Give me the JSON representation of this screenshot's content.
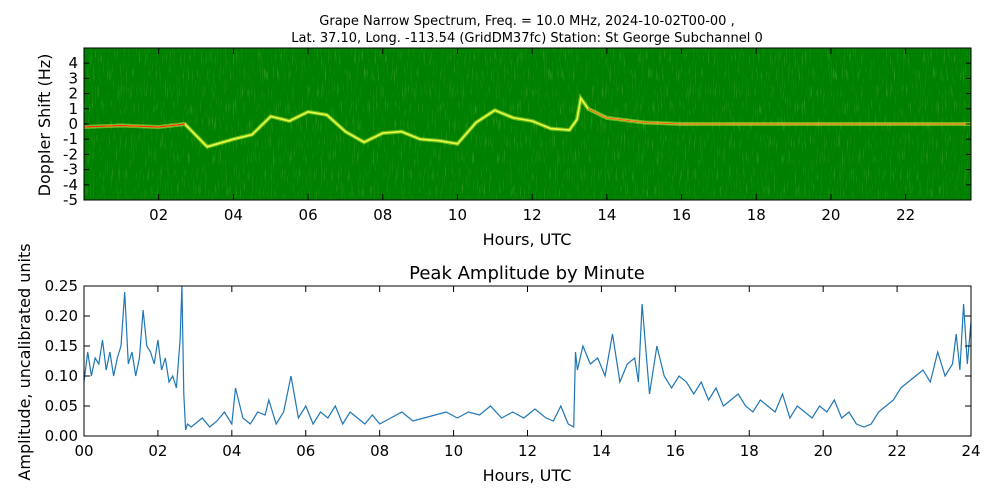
{
  "chart_data": [
    {
      "type": "heatmap",
      "title_lines": [
        "Grape Narrow Spectrum, Freq. = 10.0 MHz, 2024-10-02T00-00 ,",
        "Lat.  37.10, Long. -113.54 (GridDM37fc) Station: St George Subchannel 0"
      ],
      "xlabel": "Hours, UTC",
      "ylabel": "Doppler Shift (Hz)",
      "xlim": [
        0,
        24
      ],
      "ylim": [
        -5,
        5
      ],
      "xticks": [
        "02",
        "04",
        "06",
        "08",
        "10",
        "12",
        "14",
        "16",
        "18",
        "20",
        "22"
      ],
      "yticks": [
        "4",
        "3",
        "2",
        "1",
        "0",
        "-1",
        "-2",
        "-3",
        "-4",
        "-5"
      ],
      "colors": {
        "background": "#008000",
        "trace": "#e8ff40",
        "peak": "#ff2a10"
      },
      "doppler_trace": {
        "x": [
          0,
          1,
          2,
          2.7,
          3.3,
          4,
          4.5,
          5,
          5.5,
          6,
          6.5,
          7,
          7.5,
          8,
          8.5,
          9,
          9.5,
          10,
          10.5,
          11,
          11.5,
          12,
          12.5,
          13,
          13.2,
          13.3,
          13.5,
          14,
          15,
          16,
          17,
          18,
          19,
          20,
          21,
          22,
          23,
          24
        ],
        "y": [
          -0.2,
          -0.1,
          -0.2,
          0,
          -1.5,
          -1,
          -0.7,
          0.5,
          0.2,
          0.8,
          0.6,
          -0.5,
          -1.2,
          -0.6,
          -0.5,
          -1,
          -1.1,
          -1.3,
          0.1,
          0.9,
          0.4,
          0.2,
          -0.3,
          -0.4,
          0.3,
          1.7,
          1,
          0.4,
          0.1,
          0,
          0,
          0,
          0,
          0,
          0,
          0,
          0,
          0
        ]
      }
    },
    {
      "type": "line",
      "title": "Peak Amplitude by Minute",
      "xlabel": "Hours, UTC",
      "ylabel": "Amplitude, uncalibrated units",
      "xlim": [
        0,
        24
      ],
      "ylim": [
        0,
        0.25
      ],
      "xticks": [
        "00",
        "02",
        "04",
        "06",
        "08",
        "10",
        "12",
        "14",
        "16",
        "18",
        "20",
        "22",
        "24"
      ],
      "yticks": [
        "0.00",
        "0.05",
        "0.10",
        "0.15",
        "0.20",
        "0.25"
      ],
      "line_color": "#1f77b4",
      "series": [
        {
          "x": [
            0,
            0.1,
            0.2,
            0.3,
            0.4,
            0.5,
            0.6,
            0.7,
            0.8,
            0.9,
            1.0,
            1.1,
            1.2,
            1.3,
            1.4,
            1.5,
            1.6,
            1.7,
            1.8,
            1.9,
            2.0,
            2.1,
            2.2,
            2.3,
            2.4,
            2.5,
            2.6,
            2.65,
            2.7,
            2.75,
            2.8,
            2.9,
            3.0,
            3.2,
            3.4,
            3.6,
            3.8,
            4.0,
            4.1,
            4.3,
            4.5,
            4.7,
            4.9,
            5.0,
            5.2,
            5.4,
            5.6,
            5.8,
            6.0,
            6.2,
            6.4,
            6.6,
            6.8,
            7.0,
            7.2,
            7.4,
            7.6,
            7.8,
            8.0,
            8.3,
            8.6,
            8.9,
            9.2,
            9.5,
            9.8,
            10.1,
            10.4,
            10.7,
            11.0,
            11.3,
            11.6,
            11.9,
            12.2,
            12.5,
            12.7,
            12.9,
            13.1,
            13.25,
            13.3,
            13.35,
            13.5,
            13.7,
            13.9,
            14.1,
            14.3,
            14.5,
            14.7,
            14.9,
            15.0,
            15.1,
            15.3,
            15.5,
            15.7,
            15.9,
            16.1,
            16.3,
            16.5,
            16.7,
            16.9,
            17.1,
            17.3,
            17.5,
            17.7,
            17.9,
            18.1,
            18.3,
            18.5,
            18.7,
            18.9,
            19.1,
            19.3,
            19.5,
            19.7,
            19.9,
            20.1,
            20.3,
            20.5,
            20.7,
            20.9,
            21.1,
            21.3,
            21.5,
            21.7,
            21.9,
            22.1,
            22.3,
            22.5,
            22.7,
            22.9,
            23.1,
            23.3,
            23.5,
            23.6,
            23.7,
            23.8,
            23.9,
            24.0
          ],
          "values": [
            0.09,
            0.14,
            0.1,
            0.13,
            0.12,
            0.16,
            0.11,
            0.14,
            0.1,
            0.13,
            0.15,
            0.24,
            0.12,
            0.14,
            0.1,
            0.13,
            0.21,
            0.15,
            0.14,
            0.12,
            0.16,
            0.11,
            0.13,
            0.09,
            0.1,
            0.08,
            0.16,
            0.25,
            0.07,
            0.01,
            0.02,
            0.015,
            0.02,
            0.03,
            0.015,
            0.025,
            0.04,
            0.02,
            0.08,
            0.03,
            0.02,
            0.04,
            0.035,
            0.06,
            0.02,
            0.04,
            0.1,
            0.03,
            0.05,
            0.02,
            0.04,
            0.03,
            0.05,
            0.02,
            0.04,
            0.03,
            0.02,
            0.035,
            0.02,
            0.03,
            0.04,
            0.025,
            0.03,
            0.035,
            0.04,
            0.03,
            0.04,
            0.035,
            0.05,
            0.03,
            0.04,
            0.03,
            0.045,
            0.03,
            0.025,
            0.05,
            0.02,
            0.015,
            0.14,
            0.11,
            0.15,
            0.12,
            0.13,
            0.1,
            0.17,
            0.09,
            0.12,
            0.13,
            0.09,
            0.22,
            0.07,
            0.15,
            0.1,
            0.08,
            0.1,
            0.09,
            0.07,
            0.09,
            0.06,
            0.08,
            0.05,
            0.06,
            0.07,
            0.05,
            0.04,
            0.06,
            0.05,
            0.04,
            0.07,
            0.03,
            0.05,
            0.04,
            0.03,
            0.05,
            0.04,
            0.06,
            0.03,
            0.04,
            0.02,
            0.015,
            0.02,
            0.04,
            0.05,
            0.06,
            0.08,
            0.09,
            0.1,
            0.11,
            0.09,
            0.14,
            0.1,
            0.12,
            0.17,
            0.11,
            0.22,
            0.12,
            0.19
          ]
        }
      ]
    }
  ]
}
